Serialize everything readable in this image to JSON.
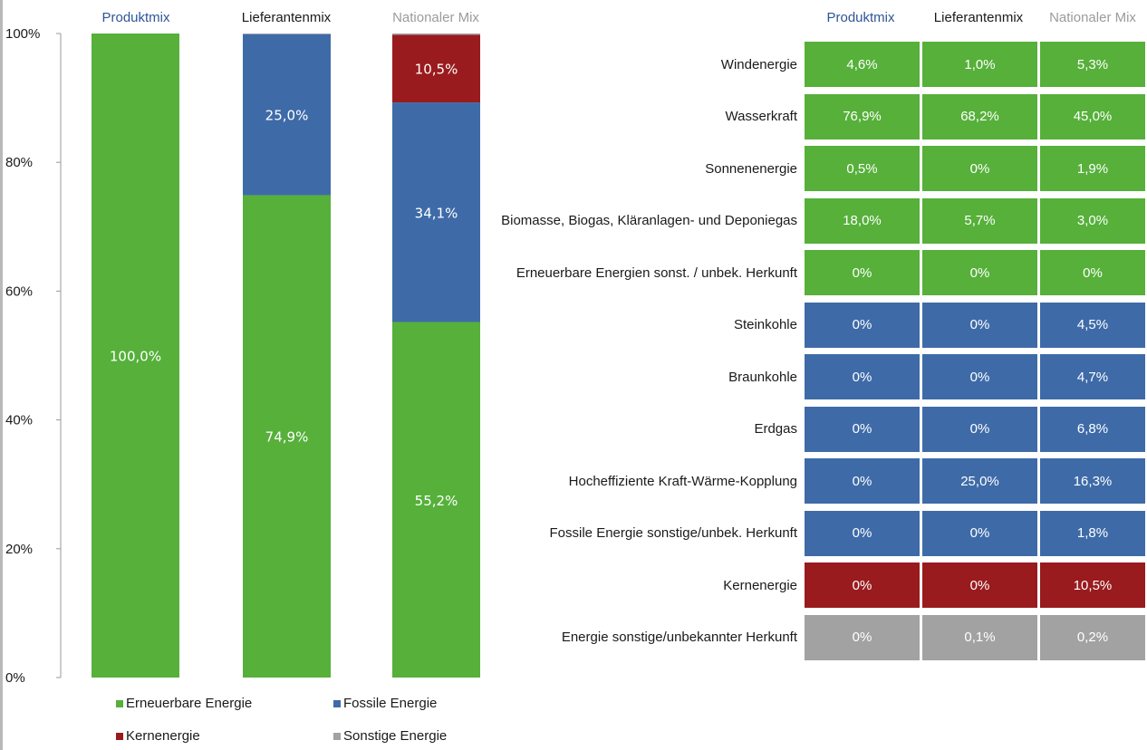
{
  "colors": {
    "renewable": "#56b03a",
    "fossil": "#3e6ba8",
    "nuclear": "#991b1e",
    "other": "#a2a2a2",
    "head_produkt": "#2f5597",
    "head_lieferant": "#1a1a1a",
    "head_national": "#9b9b9b"
  },
  "chart_data": [
    {
      "type": "bar",
      "stacked": true,
      "categories": [
        "Produktmix",
        "Lieferantenmix",
        "Nationaler Mix"
      ],
      "series": [
        {
          "name": "Erneuerbare Energie",
          "color": "renewable",
          "values": [
            100.0,
            74.9,
            55.2
          ],
          "labels": [
            "100,0%",
            "74,9%",
            "55,2%"
          ]
        },
        {
          "name": "Fossile Energie",
          "color": "fossil",
          "values": [
            0,
            25.0,
            34.1
          ],
          "labels": [
            "",
            "25,0%",
            "34,1%"
          ]
        },
        {
          "name": "Kernenergie",
          "color": "nuclear",
          "values": [
            0,
            0,
            10.5
          ],
          "labels": [
            "",
            "",
            "10,5%"
          ]
        },
        {
          "name": "Sonstige Energie",
          "color": "other",
          "values": [
            0,
            0.1,
            0.2
          ],
          "labels": [
            "",
            "",
            ""
          ]
        }
      ],
      "ylim": [
        0,
        100
      ],
      "yticks": [
        "0%",
        "20%",
        "40%",
        "60%",
        "80%",
        "100%"
      ],
      "legend_position": "bottom"
    },
    {
      "type": "table",
      "columns": [
        "Produktmix",
        "Lieferantenmix",
        "Nationaler Mix"
      ],
      "rows": [
        {
          "label": "Windenergie",
          "group": "renewable",
          "values": [
            "4,6%",
            "1,0%",
            "5,3%"
          ]
        },
        {
          "label": "Wasserkraft",
          "group": "renewable",
          "values": [
            "76,9%",
            "68,2%",
            "45,0%"
          ]
        },
        {
          "label": "Sonnenenergie",
          "group": "renewable",
          "values": [
            "0,5%",
            "0%",
            "1,9%"
          ]
        },
        {
          "label": "Biomasse, Biogas, Kläranlagen- und Deponiegas",
          "group": "renewable",
          "values": [
            "18,0%",
            "5,7%",
            "3,0%"
          ]
        },
        {
          "label": "Erneuerbare Energien sonst. / unbek. Herkunft",
          "group": "renewable",
          "values": [
            "0%",
            "0%",
            "0%"
          ]
        },
        {
          "label": "Steinkohle",
          "group": "fossil",
          "values": [
            "0%",
            "0%",
            "4,5%"
          ]
        },
        {
          "label": "Braunkohle",
          "group": "fossil",
          "values": [
            "0%",
            "0%",
            "4,7%"
          ]
        },
        {
          "label": "Erdgas",
          "group": "fossil",
          "values": [
            "0%",
            "0%",
            "6,8%"
          ]
        },
        {
          "label": "Hocheffiziente Kraft-Wärme-Kopplung",
          "group": "fossil",
          "values": [
            "0%",
            "25,0%",
            "16,3%"
          ]
        },
        {
          "label": "Fossile Energie sonstige/unbek. Herkunft",
          "group": "fossil",
          "values": [
            "0%",
            "0%",
            "1,8%"
          ]
        },
        {
          "label": "Kernenergie",
          "group": "nuclear",
          "values": [
            "0%",
            "0%",
            "10,5%"
          ]
        },
        {
          "label": "Energie sonstige/unbekannter Herkunft",
          "group": "other",
          "values": [
            "0%",
            "0,1%",
            "0,2%"
          ]
        }
      ]
    }
  ]
}
